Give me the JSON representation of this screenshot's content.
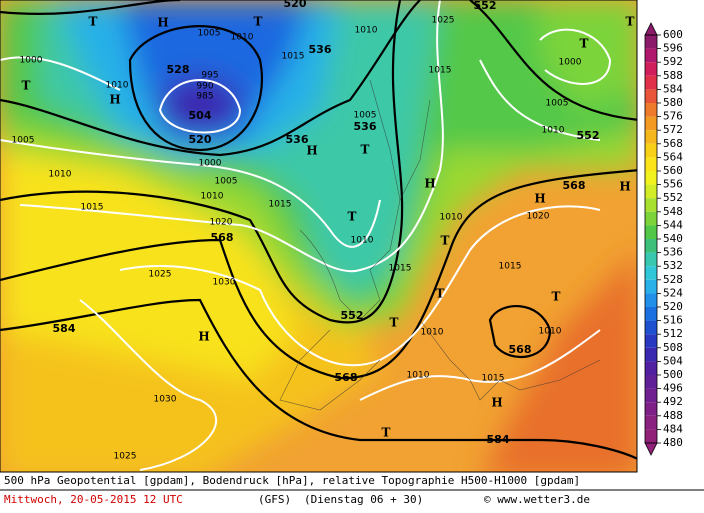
{
  "map": {
    "height_labels": [
      520,
      552,
      536,
      528,
      504,
      520,
      536,
      536,
      552,
      568,
      568,
      552,
      568,
      568,
      584,
      584
    ],
    "pressure_labels": [
      1025,
      1005,
      1010,
      1015,
      1010,
      1015,
      1000,
      1005,
      1010,
      1000,
      1010,
      1005,
      1010,
      1000,
      1005,
      1010,
      1015,
      1020,
      1015,
      1010,
      1010,
      1015,
      1020,
      1015,
      1025,
      1030,
      1010,
      1010,
      1030,
      1025,
      1015,
      1010,
      995,
      990,
      985,
      1005
    ],
    "centers": [
      "H",
      "T",
      "T",
      "H",
      "T",
      "T",
      "T",
      "H",
      "T",
      "H",
      "T",
      "H",
      "H",
      "T",
      "T",
      "T",
      "H",
      "T",
      "H",
      "T"
    ]
  },
  "colorbar": {
    "ticks": [
      600,
      596,
      592,
      588,
      584,
      580,
      576,
      572,
      568,
      564,
      560,
      556,
      552,
      548,
      544,
      540,
      536,
      532,
      528,
      524,
      520,
      516,
      512,
      508,
      504,
      500,
      496,
      492,
      488,
      484,
      480
    ],
    "colors": [
      "#8b1a6b",
      "#b0186e",
      "#d01e5c",
      "#e0304a",
      "#e8553a",
      "#ee7a2c",
      "#f29a22",
      "#f5b71c",
      "#f8d018",
      "#fbe51a",
      "#f2f21e",
      "#d2ec28",
      "#a8e030",
      "#7cd43a",
      "#52c848",
      "#3cc07a",
      "#38c8b0",
      "#30c8d8",
      "#28b0e8",
      "#2090e8",
      "#1a70e0",
      "#1e50d0",
      "#2838c0",
      "#3a28b0",
      "#5020a0",
      "#602098",
      "#702090",
      "#7e2088",
      "#8a2080",
      "#902078"
    ]
  },
  "footer": {
    "line1": "500 hPa Geopotential [gpdam], Bodendruck [hPa], relative Topographie H500-H1000 [gpdam]",
    "date": "Mittwoch, 20-05-2015  12 UTC",
    "model": "(GFS)",
    "run": "(Dienstag 06 + 30)",
    "credit": "© www.wetter3.de"
  }
}
